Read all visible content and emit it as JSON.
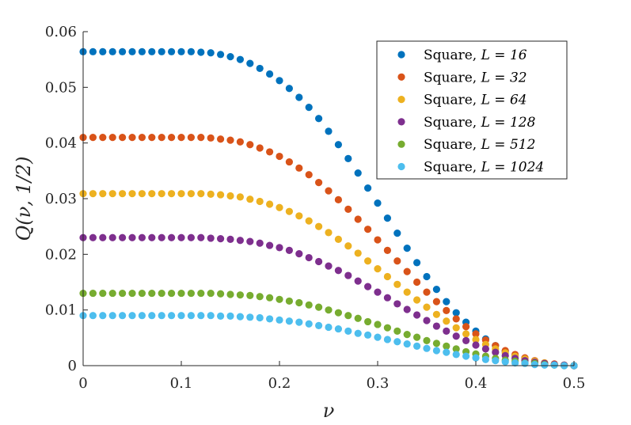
{
  "chart_data": {
    "type": "scatter",
    "title": "",
    "xlabel": "ν",
    "ylabel": "Q(ν, 1/2)",
    "xlim": [
      0,
      0.5
    ],
    "ylim": [
      0,
      0.06
    ],
    "xticks": [
      0,
      0.1,
      0.2,
      0.3,
      0.4,
      0.5
    ],
    "xtick_labels": [
      "0",
      "0.1",
      "0.2",
      "0.3",
      "0.4",
      "0.5"
    ],
    "yticks": [
      0,
      0.01,
      0.02,
      0.03,
      0.04,
      0.05,
      0.06
    ],
    "ytick_labels": [
      "0",
      "0.01",
      "0.02",
      "0.03",
      "0.04",
      "0.05",
      "0.06"
    ],
    "grid": false,
    "legend_position": "top-right",
    "x": [
      0,
      0.01,
      0.02,
      0.03,
      0.04,
      0.05,
      0.06,
      0.07,
      0.08,
      0.09,
      0.1,
      0.11,
      0.12,
      0.13,
      0.14,
      0.15,
      0.16,
      0.17,
      0.18,
      0.19,
      0.2,
      0.21,
      0.22,
      0.23,
      0.24,
      0.25,
      0.26,
      0.27,
      0.28,
      0.29,
      0.3,
      0.31,
      0.32,
      0.33,
      0.34,
      0.35,
      0.36,
      0.37,
      0.38,
      0.39,
      0.4,
      0.41,
      0.42,
      0.43,
      0.44,
      0.45,
      0.46,
      0.47,
      0.48,
      0.49,
      0.5
    ],
    "series": [
      {
        "name": "Square, L = 16",
        "label_text": "Square, ",
        "label_math": "L = 16",
        "color": "#0072BD",
        "values": [
          0.0564,
          0.0564,
          0.0564,
          0.0564,
          0.0564,
          0.0564,
          0.0564,
          0.0564,
          0.0564,
          0.0564,
          0.0564,
          0.0564,
          0.0563,
          0.0562,
          0.0559,
          0.0555,
          0.055,
          0.0543,
          0.0534,
          0.0524,
          0.0512,
          0.0498,
          0.0482,
          0.0464,
          0.0444,
          0.0421,
          0.0397,
          0.0372,
          0.0346,
          0.0319,
          0.0292,
          0.0265,
          0.0238,
          0.0211,
          0.0185,
          0.016,
          0.0137,
          0.0115,
          0.0095,
          0.0078,
          0.0062,
          0.0048,
          0.0036,
          0.0026,
          0.0018,
          0.0012,
          0.0007,
          0.0004,
          0.0002,
          0.0001,
          0.0
        ]
      },
      {
        "name": "Square, L = 32",
        "label_text": "Square, ",
        "label_math": "L = 32",
        "color": "#D95319",
        "values": [
          0.041,
          0.041,
          0.041,
          0.041,
          0.041,
          0.041,
          0.041,
          0.041,
          0.041,
          0.041,
          0.041,
          0.041,
          0.041,
          0.0409,
          0.0407,
          0.0405,
          0.0402,
          0.0397,
          0.0391,
          0.0384,
          0.0376,
          0.0366,
          0.0355,
          0.0343,
          0.0329,
          0.0314,
          0.0298,
          0.0281,
          0.0263,
          0.0245,
          0.0226,
          0.0207,
          0.0188,
          0.0169,
          0.015,
          0.0132,
          0.0115,
          0.0099,
          0.0084,
          0.007,
          0.0057,
          0.0046,
          0.0036,
          0.0027,
          0.002,
          0.0014,
          0.0009,
          0.0005,
          0.0003,
          0.0001,
          0.0
        ]
      },
      {
        "name": "Square, L = 64",
        "label_text": "Square, ",
        "label_math": "L = 64",
        "color": "#EDB120",
        "values": [
          0.0309,
          0.0309,
          0.0309,
          0.0309,
          0.0309,
          0.0309,
          0.0309,
          0.0309,
          0.0309,
          0.0309,
          0.0309,
          0.0309,
          0.0309,
          0.0308,
          0.0307,
          0.0305,
          0.0303,
          0.0299,
          0.0295,
          0.029,
          0.0284,
          0.0277,
          0.0269,
          0.026,
          0.025,
          0.0239,
          0.0227,
          0.0215,
          0.0202,
          0.0188,
          0.0174,
          0.016,
          0.0146,
          0.0132,
          0.0118,
          0.0105,
          0.0092,
          0.008,
          0.0068,
          0.0057,
          0.0047,
          0.0038,
          0.003,
          0.0023,
          0.0017,
          0.0012,
          0.0008,
          0.0005,
          0.0002,
          0.0001,
          0.0
        ]
      },
      {
        "name": "Square, L = 128",
        "label_text": "Square, ",
        "label_math": "L = 128",
        "color": "#7E2F8E",
        "values": [
          0.023,
          0.023,
          0.023,
          0.023,
          0.023,
          0.023,
          0.023,
          0.023,
          0.023,
          0.023,
          0.023,
          0.023,
          0.023,
          0.0229,
          0.0228,
          0.0227,
          0.0225,
          0.0223,
          0.022,
          0.0216,
          0.0212,
          0.0207,
          0.0201,
          0.0194,
          0.0187,
          0.0179,
          0.0171,
          0.0162,
          0.0152,
          0.0142,
          0.0132,
          0.0122,
          0.0111,
          0.0101,
          0.0091,
          0.0081,
          0.0071,
          0.0062,
          0.0053,
          0.0045,
          0.0037,
          0.003,
          0.0024,
          0.0018,
          0.0013,
          0.0009,
          0.0006,
          0.0004,
          0.0002,
          0.0001,
          0.0
        ]
      },
      {
        "name": "Square, L = 512",
        "label_text": "Square, ",
        "label_math": "L = 512",
        "color": "#77AC30",
        "values": [
          0.013,
          0.013,
          0.013,
          0.013,
          0.013,
          0.013,
          0.013,
          0.013,
          0.013,
          0.013,
          0.013,
          0.013,
          0.013,
          0.013,
          0.0129,
          0.0128,
          0.0127,
          0.0126,
          0.0124,
          0.0122,
          0.0119,
          0.0116,
          0.0113,
          0.0109,
          0.0105,
          0.01,
          0.0095,
          0.009,
          0.0085,
          0.0079,
          0.0074,
          0.0068,
          0.0062,
          0.0056,
          0.0051,
          0.0045,
          0.004,
          0.0035,
          0.003,
          0.0025,
          0.0021,
          0.0017,
          0.0013,
          0.001,
          0.0008,
          0.0005,
          0.0004,
          0.0002,
          0.0001,
          0.0,
          0.0
        ]
      },
      {
        "name": "Square, L = 1024",
        "label_text": "Square, ",
        "label_math": "L = 1024",
        "color": "#4DBEEE",
        "values": [
          0.009,
          0.009,
          0.009,
          0.009,
          0.009,
          0.009,
          0.009,
          0.009,
          0.009,
          0.009,
          0.009,
          0.009,
          0.009,
          0.009,
          0.0089,
          0.0089,
          0.0088,
          0.0087,
          0.0086,
          0.0084,
          0.0082,
          0.008,
          0.0078,
          0.0075,
          0.0072,
          0.0069,
          0.0066,
          0.0062,
          0.0058,
          0.0055,
          0.0051,
          0.0047,
          0.0043,
          0.0039,
          0.0035,
          0.0031,
          0.0027,
          0.0024,
          0.002,
          0.0017,
          0.0014,
          0.0011,
          0.0009,
          0.0007,
          0.0005,
          0.0004,
          0.0002,
          0.0001,
          0.0001,
          0.0,
          0.0
        ]
      }
    ]
  }
}
